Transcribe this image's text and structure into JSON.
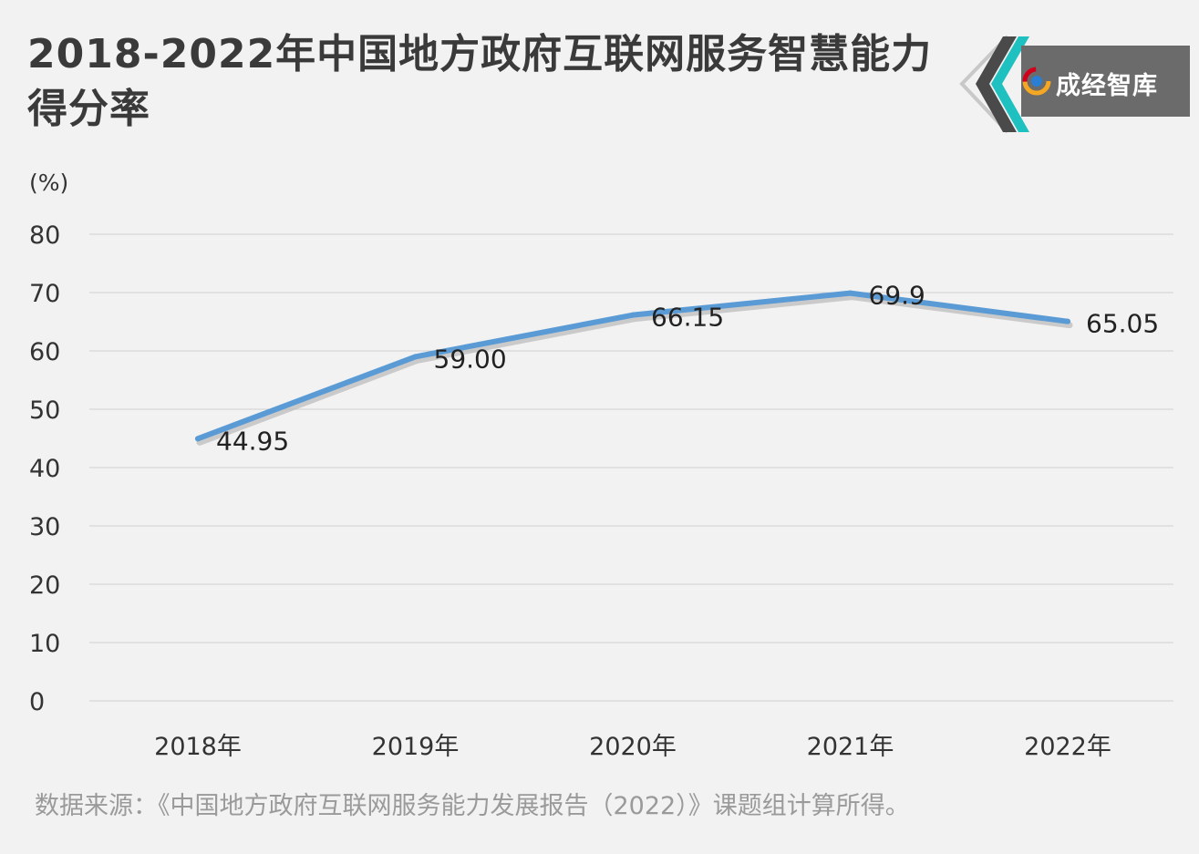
{
  "title": "2018-2022年中国地方政府互联网服务智慧能力得分率",
  "brand": {
    "name": "成经智库",
    "logo_icon": "swirl-logo-icon"
  },
  "source_note": "数据来源：《中国地方政府互联网服务能力发展报告（2022）》课题组计算所得。",
  "colors": {
    "line": "#5b9bd5",
    "background": "#f2f2f2",
    "grid": "#d0d0d0",
    "accent_teal": "#1fc0c0"
  },
  "chart_data": {
    "type": "line",
    "unit_label": "(%)",
    "categories": [
      "2018年",
      "2019年",
      "2020年",
      "2021年",
      "2022年"
    ],
    "values": [
      44.95,
      59.0,
      66.15,
      69.9,
      65.05
    ],
    "value_labels": [
      "44.95",
      "59.00",
      "66.15",
      "69.9",
      "65.05"
    ],
    "ylim": [
      0,
      80
    ],
    "yticks": [
      "0",
      "10",
      "20",
      "30",
      "40",
      "50",
      "60",
      "70",
      "80"
    ],
    "grid": true,
    "legend": "none"
  }
}
